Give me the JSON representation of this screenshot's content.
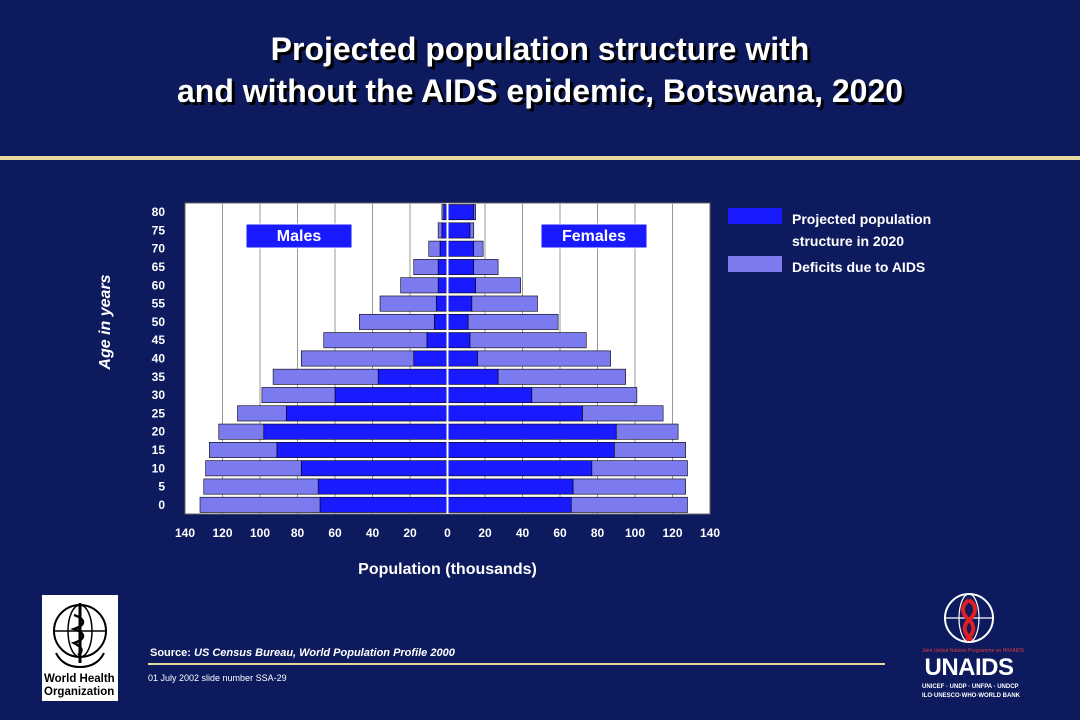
{
  "slide": {
    "title_line1": "Projected population structure with",
    "title_line2": "and without the AIDS epidemic, Botswana, 2020",
    "source_label": "Source:",
    "source_text": "US Census Bureau, World Population Profile 2000",
    "slide_note": "01 July 2002 slide number SSA-29"
  },
  "logos": {
    "who_line1": "World Health",
    "who_line2": "Organization",
    "unaids_word": "UNAIDS",
    "unaids_tagline": "Joint United Nations Programme on HIV/AIDS",
    "unaids_sub1": "UNICEF · UNDP · UNFPA · UNDCP",
    "unaids_sub2": "ILO·UNESCO·WHO·WORLD BANK"
  },
  "legend": {
    "projected": "Projected population structure in 2020",
    "deficit": "Deficits due to AIDS"
  },
  "colors": {
    "background": "#0d1a5e",
    "projected": "#1a1aff",
    "deficit": "#7b7bef",
    "plot_bg": "#ffffff",
    "rule": "#e6d9a0"
  },
  "chart_data": {
    "type": "bar",
    "orientation": "horizontal",
    "xlabel": "Population (thousands)",
    "ylabel": "Age in years",
    "panel_labels": [
      "Males",
      "Females"
    ],
    "x_ticks": [
      "140",
      "120",
      "100",
      "80",
      "60",
      "40",
      "20",
      "0",
      "20",
      "40",
      "60",
      "80",
      "100",
      "120",
      "140"
    ],
    "xlim": [
      -140,
      140
    ],
    "categories": [
      "0",
      "5",
      "10",
      "15",
      "20",
      "25",
      "30",
      "35",
      "40",
      "45",
      "50",
      "55",
      "60",
      "65",
      "70",
      "75",
      "80"
    ],
    "series": [
      {
        "name": "Projected population structure in 2020",
        "sex": "Males",
        "values": [
          68,
          69,
          78,
          91,
          98,
          86,
          60,
          37,
          18,
          11,
          7,
          6,
          5,
          5,
          4,
          3,
          2
        ]
      },
      {
        "name": "Deficits due to AIDS",
        "sex": "Males",
        "values": [
          64,
          61,
          51,
          36,
          24,
          26,
          39,
          56,
          60,
          55,
          40,
          30,
          20,
          13,
          6,
          2,
          1
        ]
      },
      {
        "name": "Projected population structure in 2020",
        "sex": "Females",
        "values": [
          66,
          67,
          77,
          89,
          90,
          72,
          45,
          27,
          16,
          12,
          11,
          13,
          15,
          14,
          14,
          12,
          14
        ]
      },
      {
        "name": "Deficits due to AIDS",
        "sex": "Females",
        "values": [
          62,
          60,
          51,
          38,
          33,
          43,
          56,
          68,
          71,
          62,
          48,
          35,
          24,
          13,
          5,
          2,
          1
        ]
      }
    ],
    "grid": "vertical",
    "legend_position": "right"
  }
}
